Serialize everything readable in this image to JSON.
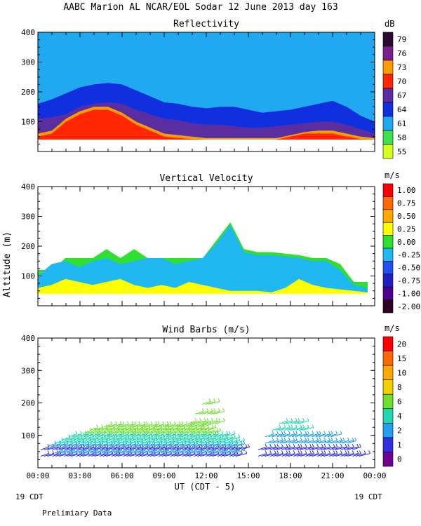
{
  "figure": {
    "title": "AABC Marion AL NCAR/EOL Sodar  12 June 2013 day 163",
    "ylabel": "Altitude (m)",
    "xlabel": "UT  (CDT - 5)",
    "x_ticks": [
      "00:00",
      "03:00",
      "06:00",
      "09:00",
      "12:00",
      "15:00",
      "18:00",
      "21:00",
      "00:00"
    ],
    "date_left": "19 CDT",
    "date_right": "19 CDT",
    "footer": "Prelimiary Data"
  },
  "chart_data": [
    {
      "type": "heatmap",
      "title": "Reflectivity",
      "unit": "dB",
      "xlim": [
        0,
        24
      ],
      "ylim": [
        0,
        400
      ],
      "y_ticks": [
        "100",
        "200",
        "300",
        "400"
      ],
      "colorbar_labels": [
        "79",
        "76",
        "73",
        "70",
        "67",
        "64",
        "61",
        "58",
        "55"
      ],
      "colors": [
        "#2a0a2e",
        "#7a1f8e",
        "#ff9c00",
        "#ff2600",
        "#5a2ea0",
        "#1030e0",
        "#20a8f0",
        "#40e050",
        "#d8ff20"
      ],
      "layers": [
        {
          "value": 61,
          "x": [
            0,
            24
          ],
          "y0": 40,
          "top": [
            400,
            400,
            400,
            400,
            400,
            400,
            400,
            400,
            400,
            400,
            400,
            400,
            400,
            400,
            400,
            400,
            400,
            400,
            400,
            400,
            400,
            400,
            400,
            400,
            400
          ]
        },
        {
          "value": 64,
          "x": [
            0,
            24
          ],
          "y0": 40,
          "top": [
            160,
            175,
            195,
            215,
            225,
            230,
            225,
            205,
            185,
            165,
            160,
            150,
            145,
            150,
            150,
            140,
            130,
            135,
            140,
            150,
            160,
            170,
            150,
            120,
            100
          ]
        },
        {
          "value": 67,
          "x": [
            0,
            24
          ],
          "y0": 40,
          "top": [
            110,
            115,
            125,
            150,
            160,
            165,
            160,
            140,
            125,
            110,
            105,
            95,
            90,
            90,
            85,
            80,
            80,
            85,
            90,
            95,
            100,
            100,
            90,
            75,
            60
          ]
        },
        {
          "value": 73,
          "x": [
            0,
            24
          ],
          "y0": 40,
          "top": [
            60,
            70,
            110,
            135,
            150,
            150,
            130,
            100,
            80,
            60,
            55,
            50,
            45,
            45,
            45,
            45,
            45,
            45,
            55,
            65,
            70,
            70,
            60,
            50,
            45
          ]
        },
        {
          "value": 70,
          "x": [
            0,
            24
          ],
          "y0": 40,
          "top": [
            50,
            60,
            100,
            125,
            140,
            140,
            120,
            90,
            70,
            50,
            45,
            42,
            40,
            40,
            40,
            40,
            40,
            40,
            50,
            60,
            60,
            60,
            50,
            42,
            40
          ]
        }
      ]
    },
    {
      "type": "heatmap",
      "title": "Vertical Velocity",
      "unit": "m/s",
      "xlim": [
        0,
        24
      ],
      "ylim": [
        0,
        400
      ],
      "y_ticks": [
        "100",
        "200",
        "300",
        "400"
      ],
      "colorbar_labels": [
        "1.00",
        "0.75",
        "0.50",
        "0.25",
        "0.00",
        "-0.25",
        "-0.50",
        "-0.75",
        "-1.00",
        "-2.00"
      ],
      "colors": [
        "#ff0000",
        "#ff6a00",
        "#ffa800",
        "#ffff00",
        "#30e030",
        "#20b8f0",
        "#2050f0",
        "#2020c0",
        "#500090",
        "#300020"
      ],
      "layers": [
        {
          "value": 0.0,
          "x": [
            0,
            23.5
          ],
          "y0": 40,
          "top": [
            120,
            120,
            160,
            160,
            160,
            190,
            160,
            190,
            160,
            160,
            160,
            160,
            160,
            220,
            280,
            190,
            180,
            180,
            175,
            170,
            160,
            160,
            140,
            80,
            80
          ]
        },
        {
          "value": -0.25,
          "x": [
            0,
            23.5
          ],
          "y0": 40,
          "top": [
            100,
            140,
            150,
            130,
            150,
            160,
            140,
            150,
            160,
            160,
            140,
            150,
            160,
            210,
            270,
            180,
            170,
            170,
            165,
            160,
            150,
            150,
            120,
            70,
            60
          ]
        },
        {
          "value": 0.25,
          "x": [
            0,
            23.5
          ],
          "y0": 40,
          "top": [
            60,
            70,
            90,
            80,
            70,
            80,
            90,
            70,
            60,
            70,
            60,
            80,
            70,
            60,
            50,
            50,
            50,
            45,
            60,
            90,
            70,
            60,
            55,
            50,
            45
          ]
        }
      ]
    },
    {
      "type": "scatter",
      "title": "Wind Barbs (m/s)",
      "unit": "m/s",
      "xlim": [
        0,
        24
      ],
      "ylim": [
        0,
        400
      ],
      "y_ticks": [
        "100",
        "200",
        "300",
        "400"
      ],
      "colorbar_labels": [
        "20",
        "15",
        "10",
        "8",
        "6",
        "4",
        "2",
        "1",
        "0"
      ],
      "colors": [
        "#ff0000",
        "#ff6a00",
        "#ffa800",
        "#f0d000",
        "#70e030",
        "#20d8b0",
        "#20a0f0",
        "#3030e0",
        "#700090"
      ],
      "rows": [
        {
          "y": 40,
          "x0": 0.5,
          "x1": 14.5,
          "speed": 1
        },
        {
          "y": 50,
          "x0": 1.5,
          "x1": 14.5,
          "speed": 2
        },
        {
          "y": 60,
          "x0": 0.5,
          "x1": 14.8,
          "speed": 1
        },
        {
          "y": 70,
          "x0": 1.0,
          "x1": 14.6,
          "speed": 2
        },
        {
          "y": 80,
          "x0": 1.5,
          "x1": 14.6,
          "speed": 3
        },
        {
          "y": 90,
          "x0": 2.0,
          "x1": 14.2,
          "speed": 4
        },
        {
          "y": 100,
          "x0": 2.5,
          "x1": 13.8,
          "speed": 4
        },
        {
          "y": 110,
          "x0": 3.5,
          "x1": 13.0,
          "speed": 5
        },
        {
          "y": 120,
          "x0": 4.0,
          "x1": 12.5,
          "speed": 5
        },
        {
          "y": 130,
          "x0": 5.0,
          "x1": 12.0,
          "speed": 6
        },
        {
          "y": 140,
          "x0": 11.0,
          "x1": 13.0,
          "speed": 5
        },
        {
          "y": 170,
          "x0": 11.5,
          "x1": 13.0,
          "speed": 5
        },
        {
          "y": 200,
          "x0": 12.0,
          "x1": 12.8,
          "speed": 6
        },
        {
          "y": 40,
          "x0": 16.0,
          "x1": 23.5,
          "speed": 1
        },
        {
          "y": 60,
          "x0": 16.0,
          "x1": 23.0,
          "speed": 1
        },
        {
          "y": 80,
          "x0": 16.5,
          "x1": 22.5,
          "speed": 2
        },
        {
          "y": 100,
          "x0": 16.5,
          "x1": 21.5,
          "speed": 2
        },
        {
          "y": 120,
          "x0": 17.0,
          "x1": 19.5,
          "speed": 3
        },
        {
          "y": 140,
          "x0": 17.5,
          "x1": 19.0,
          "speed": 4
        }
      ]
    }
  ]
}
